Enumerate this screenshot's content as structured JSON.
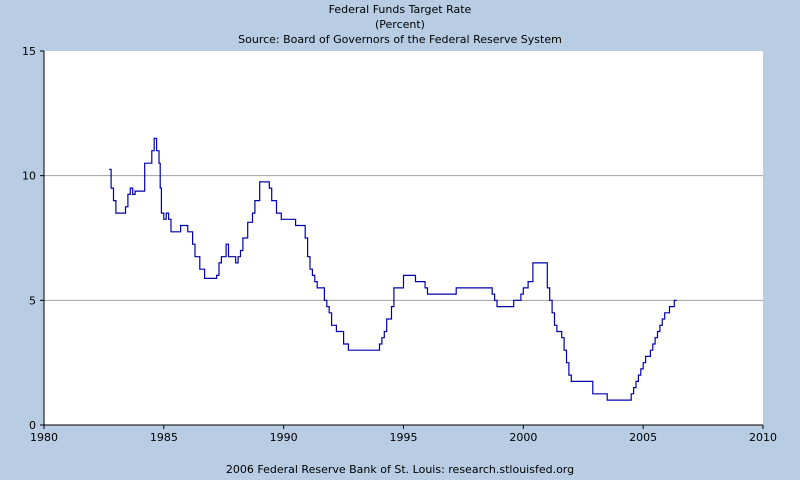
{
  "chart_data": {
    "type": "line",
    "title": "Federal Funds Target Rate",
    "subtitle": "(Percent)",
    "source": "Source: Board of Governors of the Federal Reserve System",
    "footer": "2006 Federal Reserve Bank of St. Louis: research.stlouisfed.org",
    "xlabel": "",
    "ylabel": "",
    "xlim": [
      1980,
      2010
    ],
    "ylim": [
      0,
      15
    ],
    "x_ticks": [
      1980,
      1985,
      1990,
      1995,
      2000,
      2005,
      2010
    ],
    "y_ticks": [
      0,
      5,
      10,
      15
    ],
    "grid": "horizontal",
    "colors": {
      "background": "#b8cce4",
      "plot_area": "#ffffff",
      "line": "#0000aa",
      "grid": "#a0a0a0"
    },
    "series": [
      {
        "step": true,
        "x": [
          1982.72,
          1982.8,
          1982.9,
          1983.0,
          1983.4,
          1983.5,
          1983.6,
          1983.7,
          1983.8,
          1984.0,
          1984.2,
          1984.5,
          1984.6,
          1984.7,
          1984.8,
          1984.85,
          1984.9,
          1985.0,
          1985.1,
          1985.2,
          1985.3,
          1985.4,
          1985.5,
          1985.7,
          1986.0,
          1986.2,
          1986.3,
          1986.5,
          1986.7,
          1987.2,
          1987.3,
          1987.4,
          1987.5,
          1987.6,
          1987.7,
          1987.8,
          1988.0,
          1988.1,
          1988.2,
          1988.3,
          1988.5,
          1988.7,
          1988.8,
          1989.0,
          1989.1,
          1989.4,
          1989.5,
          1989.6,
          1989.7,
          1989.9,
          1990.0,
          1990.5,
          1990.8,
          1990.9,
          1991.0,
          1991.1,
          1991.2,
          1991.3,
          1991.4,
          1991.7,
          1991.8,
          1991.9,
          1992.0,
          1992.2,
          1992.5,
          1992.6,
          1992.7,
          1994.0,
          1994.1,
          1994.2,
          1994.3,
          1994.5,
          1994.6,
          1994.9,
          1995.0,
          1995.5,
          1995.9,
          1996.0,
          1997.2,
          1998.7,
          1998.8,
          1998.9,
          1999.5,
          1999.6,
          1999.9,
          2000.0,
          2000.2,
          2000.4,
          2001.0,
          2001.1,
          2001.2,
          2001.3,
          2001.4,
          2001.6,
          2001.7,
          2001.8,
          2001.9,
          2002.0,
          2002.9,
          2003.5,
          2004.5,
          2004.6,
          2004.7,
          2004.8,
          2004.9,
          2005.0,
          2005.1,
          2005.2,
          2005.3,
          2005.4,
          2005.5,
          2005.6,
          2005.7,
          2005.8,
          2005.9,
          2006.0,
          2006.1,
          2006.3,
          2006.4
        ],
        "values": [
          10.25,
          9.5,
          9.0,
          8.5,
          8.75,
          9.25,
          9.5,
          9.25,
          9.38,
          9.38,
          10.5,
          11.0,
          11.5,
          11.0,
          10.5,
          9.5,
          8.5,
          8.25,
          8.5,
          8.25,
          7.75,
          7.75,
          7.75,
          8.0,
          7.75,
          7.25,
          6.75,
          6.25,
          5.88,
          6.0,
          6.5,
          6.75,
          6.75,
          7.25,
          6.75,
          6.75,
          6.5,
          6.75,
          7.0,
          7.5,
          8.13,
          8.5,
          9.0,
          9.75,
          9.75,
          9.5,
          9.0,
          9.0,
          8.5,
          8.25,
          8.25,
          8.0,
          8.0,
          7.5,
          6.75,
          6.25,
          6.0,
          5.75,
          5.5,
          5.0,
          4.75,
          4.5,
          4.0,
          3.75,
          3.25,
          3.25,
          3.0,
          3.25,
          3.5,
          3.75,
          4.25,
          4.75,
          5.5,
          5.5,
          6.0,
          5.75,
          5.5,
          5.25,
          5.5,
          5.25,
          5.0,
          4.75,
          4.75,
          5.0,
          5.25,
          5.5,
          5.75,
          6.5,
          5.5,
          5.0,
          4.5,
          4.0,
          3.75,
          3.5,
          3.0,
          2.5,
          2.0,
          1.75,
          1.25,
          1.0,
          1.25,
          1.5,
          1.75,
          2.0,
          2.25,
          2.5,
          2.75,
          2.75,
          3.0,
          3.25,
          3.5,
          3.75,
          4.0,
          4.25,
          4.5,
          4.5,
          4.75,
          5.0,
          5.0
        ]
      }
    ]
  }
}
